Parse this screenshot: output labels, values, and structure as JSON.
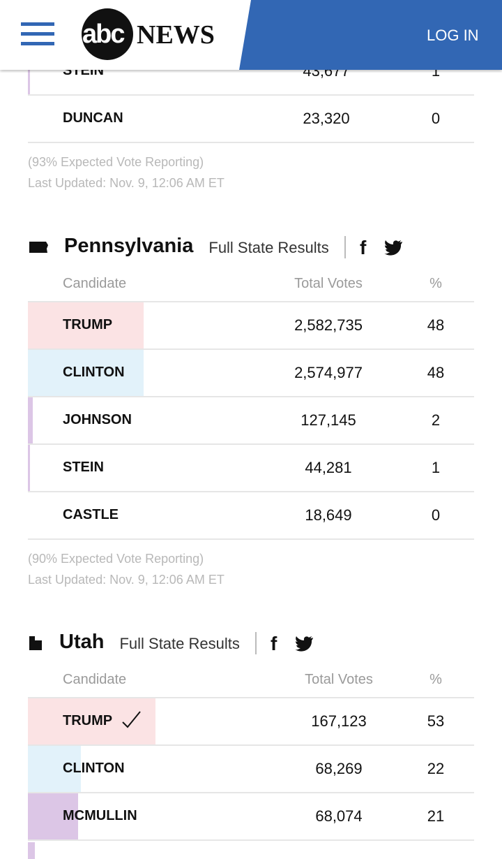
{
  "header": {
    "logo_abc": "abc",
    "logo_news": "NEWS",
    "login": "LOG IN"
  },
  "sections": [
    {
      "rows": [
        {
          "name": "STEIN",
          "votes": "43,677",
          "pct": 1,
          "color": "#dcc6e6"
        },
        {
          "name": "DUNCAN",
          "votes": "23,320",
          "pct": 0,
          "color": "#dcc6e6"
        }
      ],
      "reporting": "(93% Expected Vote Reporting)",
      "updated": "Last Updated: Nov. 9, 12:06 AM ET"
    },
    {
      "state": "Pennsylvania",
      "link": "Full State Results",
      "columns": [
        "Candidate",
        "Total Votes",
        "%"
      ],
      "rows": [
        {
          "name": "TRUMP",
          "votes": "2,582,735",
          "pct": 48,
          "color": "#fbe3e4"
        },
        {
          "name": "CLINTON",
          "votes": "2,574,977",
          "pct": 48,
          "color": "#e2f2fa"
        },
        {
          "name": "JOHNSON",
          "votes": "127,145",
          "pct": 2,
          "color": "#dcc6e6"
        },
        {
          "name": "STEIN",
          "votes": "44,281",
          "pct": 1,
          "color": "#dcc6e6"
        },
        {
          "name": "CASTLE",
          "votes": "18,649",
          "pct": 0,
          "color": "#dcc6e6"
        }
      ],
      "reporting": "(90% Expected Vote Reporting)",
      "updated": "Last Updated: Nov. 9, 12:06 AM ET"
    },
    {
      "state": "Utah",
      "link": "Full State Results",
      "columns": [
        "Candidate",
        "Total Votes",
        "%"
      ],
      "rows": [
        {
          "name": "TRUMP",
          "votes": "167,123",
          "pct": 53,
          "color": "#fbe3e4",
          "winner": true
        },
        {
          "name": "CLINTON",
          "votes": "68,269",
          "pct": 22,
          "color": "#e2f2fa"
        },
        {
          "name": "MCMULLIN",
          "votes": "68,074",
          "pct": 21,
          "color": "#dcc6e6"
        }
      ]
    }
  ]
}
